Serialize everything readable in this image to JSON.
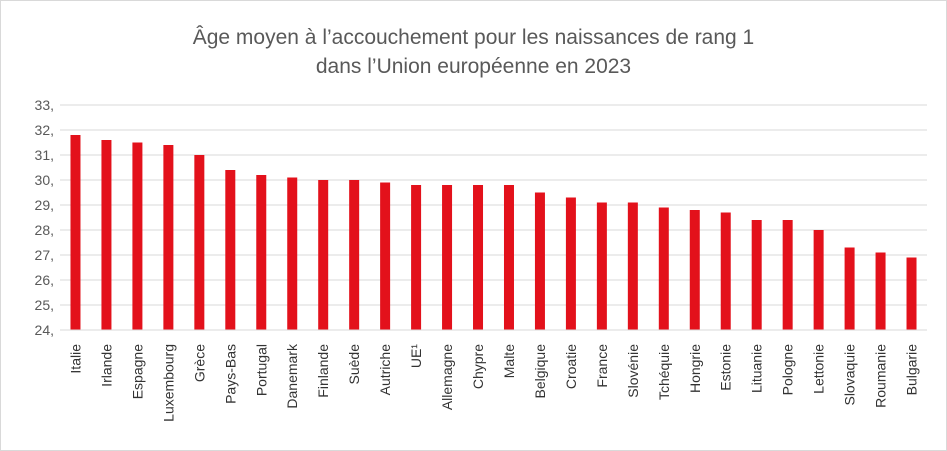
{
  "chart_data": {
    "type": "bar",
    "title_line1": "Âge moyen à l’accouchement pour les naissances de rang 1",
    "title_line2": "dans l’Union européenne en 2023",
    "xlabel": "",
    "ylabel": "",
    "ylim": [
      24,
      33
    ],
    "yticks": [
      "24,",
      "25,",
      "26,",
      "27,",
      "28,",
      "29,",
      "30,",
      "31,",
      "32,",
      "33,"
    ],
    "grid": true,
    "bar_color": "#e3111b",
    "categories": [
      "Italie",
      "Irlande",
      "Espagne",
      "Luxembourg",
      "Grèce",
      "Pays-Bas",
      "Portugal",
      "Danemark",
      "Finlande",
      "Suède",
      "Autriche",
      "UE¹",
      "Allemagne",
      "Chypre",
      "Malte",
      "Belgique",
      "Croatie",
      "France",
      "Slovénie",
      "Tchéquie",
      "Hongrie",
      "Estonie",
      "Lituanie",
      "Pologne",
      "Lettonie",
      "Slovaquie",
      "Roumanie",
      "Bulgarie"
    ],
    "values": [
      31.8,
      31.6,
      31.5,
      31.4,
      31.0,
      30.4,
      30.2,
      30.1,
      30.0,
      30.0,
      29.9,
      29.8,
      29.8,
      29.8,
      29.8,
      29.5,
      29.3,
      29.1,
      29.1,
      28.9,
      28.8,
      28.7,
      28.4,
      28.4,
      28.0,
      27.3,
      27.1,
      26.9
    ]
  }
}
